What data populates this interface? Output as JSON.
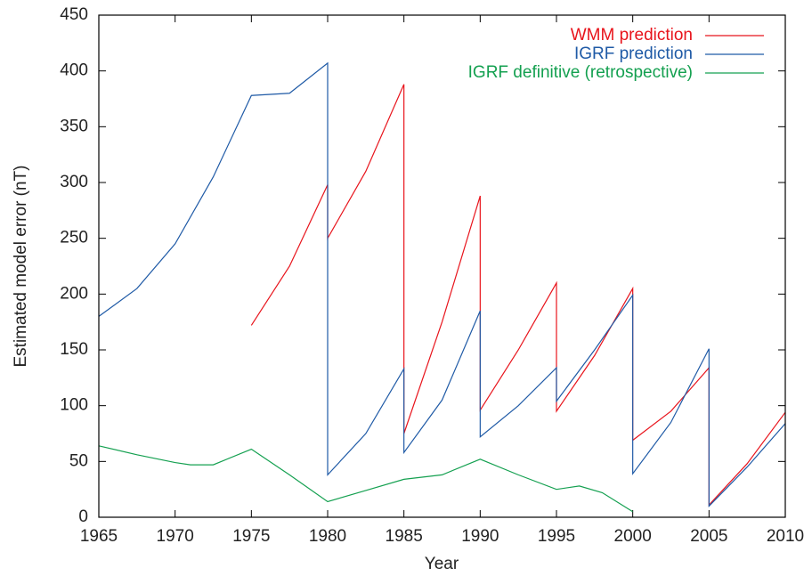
{
  "chart_data": {
    "type": "line",
    "x_label": "Year",
    "y_label": "Estimated model error (nT)",
    "xlim": [
      1965,
      2010
    ],
    "xticks": [
      1965,
      1970,
      1975,
      1980,
      1985,
      1990,
      1995,
      2000,
      2005,
      2010
    ],
    "ylim": [
      0,
      450
    ],
    "yticks": [
      0,
      50,
      100,
      150,
      200,
      250,
      300,
      350,
      400,
      450
    ],
    "legend": "upper right",
    "series": [
      {
        "name": "WMM prediction",
        "color": "#e8141c",
        "x": [
          1975,
          1977.5,
          1980,
          1980,
          1982.5,
          1985,
          1985,
          1987.5,
          1990,
          1990,
          1992.5,
          1995,
          1995,
          1997.5,
          2000,
          2000,
          2002.5,
          2005,
          2005,
          2007.5,
          2010
        ],
        "values": [
          172,
          225,
          298,
          250,
          310,
          388,
          75,
          175,
          288,
          96,
          150,
          210,
          95,
          145,
          205,
          69,
          95,
          134,
          11,
          48,
          94
        ]
      },
      {
        "name": "IGRF prediction",
        "color": "#1f5aa6",
        "x": [
          1965,
          1967.5,
          1970,
          1972.5,
          1975,
          1977.5,
          1980,
          1980,
          1982.5,
          1985,
          1985,
          1987.5,
          1990,
          1990,
          1992.5,
          1995,
          1995,
          1997.5,
          2000,
          2000,
          2002.5,
          2005,
          2005,
          2007.5,
          2010
        ],
        "values": [
          180,
          205,
          245,
          305,
          378,
          380,
          407,
          38,
          75,
          133,
          58,
          105,
          185,
          72,
          100,
          134,
          104,
          150,
          199,
          39,
          85,
          151,
          10,
          45,
          84
        ]
      },
      {
        "name": "IGRF definitive (retrospective)",
        "color": "#14a050",
        "x": [
          1965,
          1967.5,
          1970,
          1971,
          1972.5,
          1975,
          1977.5,
          1980,
          1982.5,
          1985,
          1987.5,
          1990,
          1992.5,
          1995,
          1996.5,
          1998,
          2000
        ],
        "values": [
          64,
          56,
          49,
          47,
          47,
          61,
          38,
          14,
          24,
          34,
          38,
          52,
          38,
          25,
          28,
          22,
          5
        ]
      }
    ]
  }
}
